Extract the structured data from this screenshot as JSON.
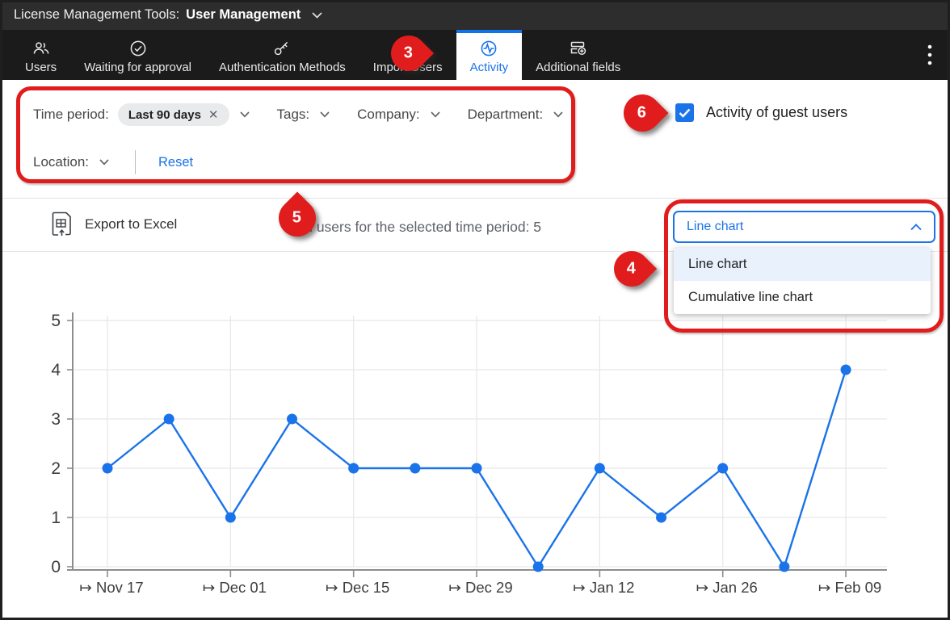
{
  "title_bar": {
    "app": "License Management Tools:",
    "context": "User Management"
  },
  "tabs": [
    {
      "label": "Users",
      "icon": "users-icon",
      "active": false
    },
    {
      "label": "Waiting for approval",
      "icon": "check-circle-icon",
      "active": false
    },
    {
      "label": "Authentication Methods",
      "icon": "key-icon",
      "active": false
    },
    {
      "label": "Import Users",
      "icon": "import-users-icon",
      "active": false
    },
    {
      "label": "Activity",
      "icon": "activity-icon",
      "active": true
    },
    {
      "label": "Additional fields",
      "icon": "additional-fields-icon",
      "active": false
    }
  ],
  "filters": {
    "time_period_label": "Time period:",
    "time_period_chip": "Last 90 days",
    "chip_remove": "✕",
    "tags_label": "Tags:",
    "company_label": "Company:",
    "department_label": "Department:",
    "location_label": "Location:",
    "reset_label": "Reset"
  },
  "guest_checkbox": {
    "label": "Activity of guest users",
    "checked": true
  },
  "toolbar": {
    "export_label": "Export to Excel",
    "total_users_text": "Total users for the selected time period: 5"
  },
  "chart_type_dropdown": {
    "selected": "Line chart",
    "expanded": true,
    "options": [
      "Line chart",
      "Cumulative line chart"
    ]
  },
  "callouts": [
    {
      "number": "3",
      "points_to": "Activity tab"
    },
    {
      "number": "4",
      "points_to": "chart type dropdown"
    },
    {
      "number": "5",
      "points_to": "filter area"
    },
    {
      "number": "6",
      "points_to": "Activity of guest users checkbox"
    }
  ],
  "icons": {
    "users": "two-people-outline",
    "waiting_for_approval": "check-in-circle",
    "authentication_methods": "key",
    "import_users": "person-with-arrow",
    "activity": "pulse-in-circle",
    "additional_fields": "fields-with-plus",
    "overflow": "kebab-three-dots",
    "export": "sheet-with-up-arrow"
  },
  "colors": {
    "accent_blue": "#1a73e8",
    "annotation_red": "#e11c1c",
    "titlebar_bg": "#2d2d2d",
    "tabbar_bg": "#1b1b1b",
    "option_highlight": "#e8f1fc"
  },
  "chart_data": {
    "type": "line",
    "title": "",
    "xlabel": "",
    "ylabel": "",
    "x": [
      "Nov 17",
      "Nov 24",
      "Dec 01",
      "Dec 08",
      "Dec 15",
      "Dec 22",
      "Dec 29",
      "Jan 05",
      "Jan 12",
      "Jan 19",
      "Jan 26",
      "Feb 02",
      "Feb 09"
    ],
    "values": [
      2,
      3,
      1,
      3,
      2,
      2,
      2,
      0,
      2,
      1,
      2,
      0,
      4
    ],
    "x_tick_labels": [
      "↦ Nov 17",
      "↦ Dec 01",
      "↦ Dec 15",
      "↦ Dec 29",
      "↦ Jan 12",
      "↦ Jan 26",
      "↦ Feb 09"
    ],
    "y_ticks": [
      0,
      1,
      2,
      3,
      4,
      5
    ],
    "ylim": [
      0,
      5
    ],
    "grid": true,
    "legend": "none",
    "line_color": "#1a73e8"
  }
}
